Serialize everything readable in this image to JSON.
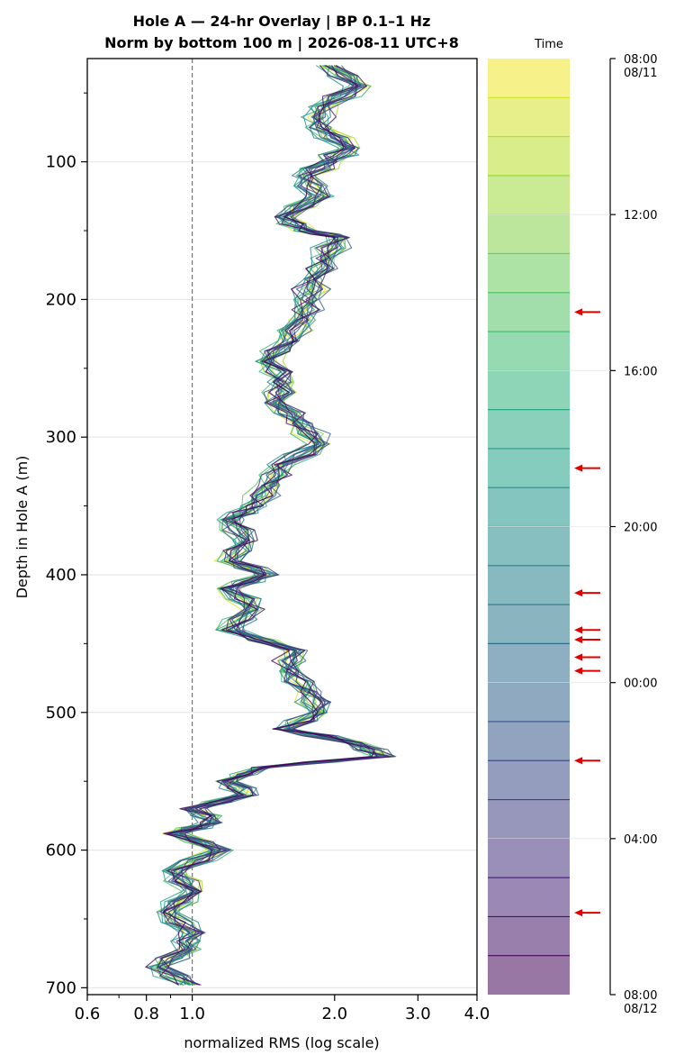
{
  "chart_data": {
    "type": "line",
    "title_line1": "Hole A — 24-hr Overlay  |  BP 0.1–1 Hz",
    "title_line2": "Norm by bottom 100 m  |  2026-08-11 UTC+8",
    "xlabel": "normalized RMS  (log scale)",
    "ylabel": "Depth in Hole A (m)",
    "x_scale": "log",
    "xlim": [
      0.6,
      4.0
    ],
    "ylim": [
      705,
      25
    ],
    "x_ticks": [
      {
        "value": 0.6,
        "label": "0.6"
      },
      {
        "value": 0.8,
        "label": "0.8"
      },
      {
        "value": 1.0,
        "label": "1.0"
      },
      {
        "value": 2.0,
        "label": "2.0"
      },
      {
        "value": 3.0,
        "label": "3.0"
      },
      {
        "value": 4.0,
        "label": "4.0"
      }
    ],
    "y_ticks": [
      {
        "value": 100,
        "label": "100"
      },
      {
        "value": 200,
        "label": "200"
      },
      {
        "value": 300,
        "label": "300"
      },
      {
        "value": 400,
        "label": "400"
      },
      {
        "value": 500,
        "label": "500"
      },
      {
        "value": 600,
        "label": "600"
      },
      {
        "value": 700,
        "label": "700"
      }
    ],
    "grid": "horizontal",
    "reference_line_x": 1.0,
    "series_count": 24,
    "series_colormap": "viridis_r",
    "profile": [
      [
        30,
        1.95
      ],
      [
        45,
        2.25
      ],
      [
        60,
        1.9
      ],
      [
        75,
        1.85
      ],
      [
        90,
        2.15
      ],
      [
        100,
        1.95
      ],
      [
        110,
        1.75
      ],
      [
        125,
        1.85
      ],
      [
        140,
        1.55
      ],
      [
        150,
        1.75
      ],
      [
        155,
        2.05
      ],
      [
        170,
        1.9
      ],
      [
        185,
        1.8
      ],
      [
        200,
        1.75
      ],
      [
        215,
        1.7
      ],
      [
        230,
        1.6
      ],
      [
        245,
        1.45
      ],
      [
        260,
        1.55
      ],
      [
        275,
        1.5
      ],
      [
        290,
        1.7
      ],
      [
        305,
        1.85
      ],
      [
        320,
        1.55
      ],
      [
        335,
        1.45
      ],
      [
        350,
        1.35
      ],
      [
        360,
        1.2
      ],
      [
        375,
        1.3
      ],
      [
        390,
        1.2
      ],
      [
        400,
        1.45
      ],
      [
        410,
        1.2
      ],
      [
        425,
        1.35
      ],
      [
        440,
        1.2
      ],
      [
        455,
        1.65
      ],
      [
        470,
        1.6
      ],
      [
        485,
        1.75
      ],
      [
        500,
        1.85
      ],
      [
        512,
        1.55
      ],
      [
        522,
        2.2
      ],
      [
        532,
        2.55
      ],
      [
        540,
        1.4
      ],
      [
        550,
        1.2
      ],
      [
        560,
        1.3
      ],
      [
        570,
        1.0
      ],
      [
        580,
        1.1
      ],
      [
        588,
        0.92
      ],
      [
        600,
        1.15
      ],
      [
        615,
        0.92
      ],
      [
        630,
        1.0
      ],
      [
        645,
        0.88
      ],
      [
        660,
        1.0
      ],
      [
        672,
        0.98
      ],
      [
        685,
        0.85
      ],
      [
        698,
        0.98
      ]
    ],
    "colorbar": {
      "title": "Time",
      "tick_labels": [
        "08:00\n08/11",
        "12:00",
        "16:00",
        "20:00",
        "00:00",
        "04:00",
        "08:00\n08/12"
      ],
      "tick_hours": [
        0,
        4,
        8,
        12,
        16,
        20,
        24
      ],
      "band_count": 24,
      "arrow_hours": [
        6.5,
        10.5,
        13.7,
        14.65,
        14.9,
        15.35,
        15.7,
        18.0,
        21.9
      ],
      "arrow_color": "#e00000"
    }
  }
}
